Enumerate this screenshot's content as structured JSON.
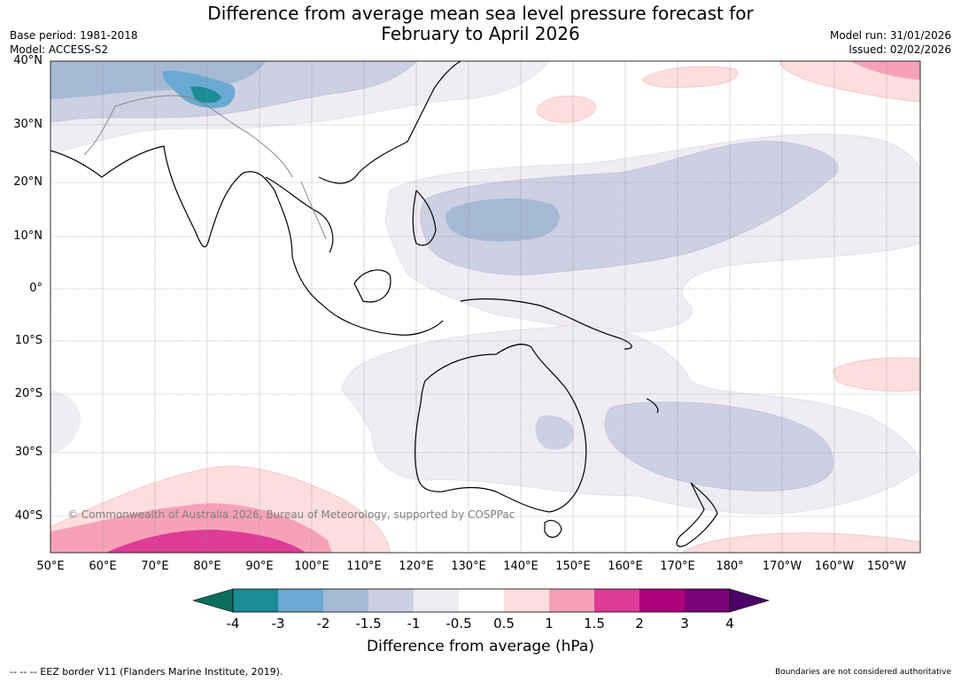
{
  "title": "Difference from average mean sea level pressure forecast for",
  "subtitle": "February to April 2026",
  "meta_left": {
    "base_period": "Base period: 1981-2018",
    "model": "Model: ACCESS-S2"
  },
  "meta_right": {
    "model_run": "Model run: 31/01/2026",
    "issued": "Issued: 02/02/2026"
  },
  "map": {
    "lat_labels": [
      "40°N",
      "30°N",
      "20°N",
      "10°N",
      "0°",
      "10°S",
      "20°S",
      "30°S",
      "40°S"
    ],
    "lon_labels": [
      "50°E",
      "60°E",
      "70°E",
      "80°E",
      "90°E",
      "100°E",
      "110°E",
      "120°E",
      "130°E",
      "140°E",
      "150°E",
      "160°E",
      "170°E",
      "180°",
      "170°W",
      "160°W",
      "150°W"
    ],
    "copyright": "© Commonwealth of Australia 2026, Bureau of Meteorology, supported by COSPPac"
  },
  "colorbar": {
    "ticks": [
      "-4",
      "-3",
      "-2",
      "-1.5",
      "-1",
      "-0.5",
      "0.5",
      "1",
      "1.5",
      "2",
      "3",
      "4"
    ],
    "colors": [
      "#0b6e5f",
      "#1b8d96",
      "#6aa9d1",
      "#a5b9d5",
      "#cdd0e3",
      "#f0ecf3",
      "#ffffff",
      "#fddede",
      "#f7a1b8",
      "#dd3c98",
      "#ad007a",
      "#7a0177",
      "#4b0067"
    ],
    "label": "Difference from average (hPa)"
  },
  "footer": {
    "eez": "--  --  -- EEZ border V11 (Flanders Marine Institute, 2019).",
    "disclaimer": "Boundaries are not considered authoritative"
  }
}
